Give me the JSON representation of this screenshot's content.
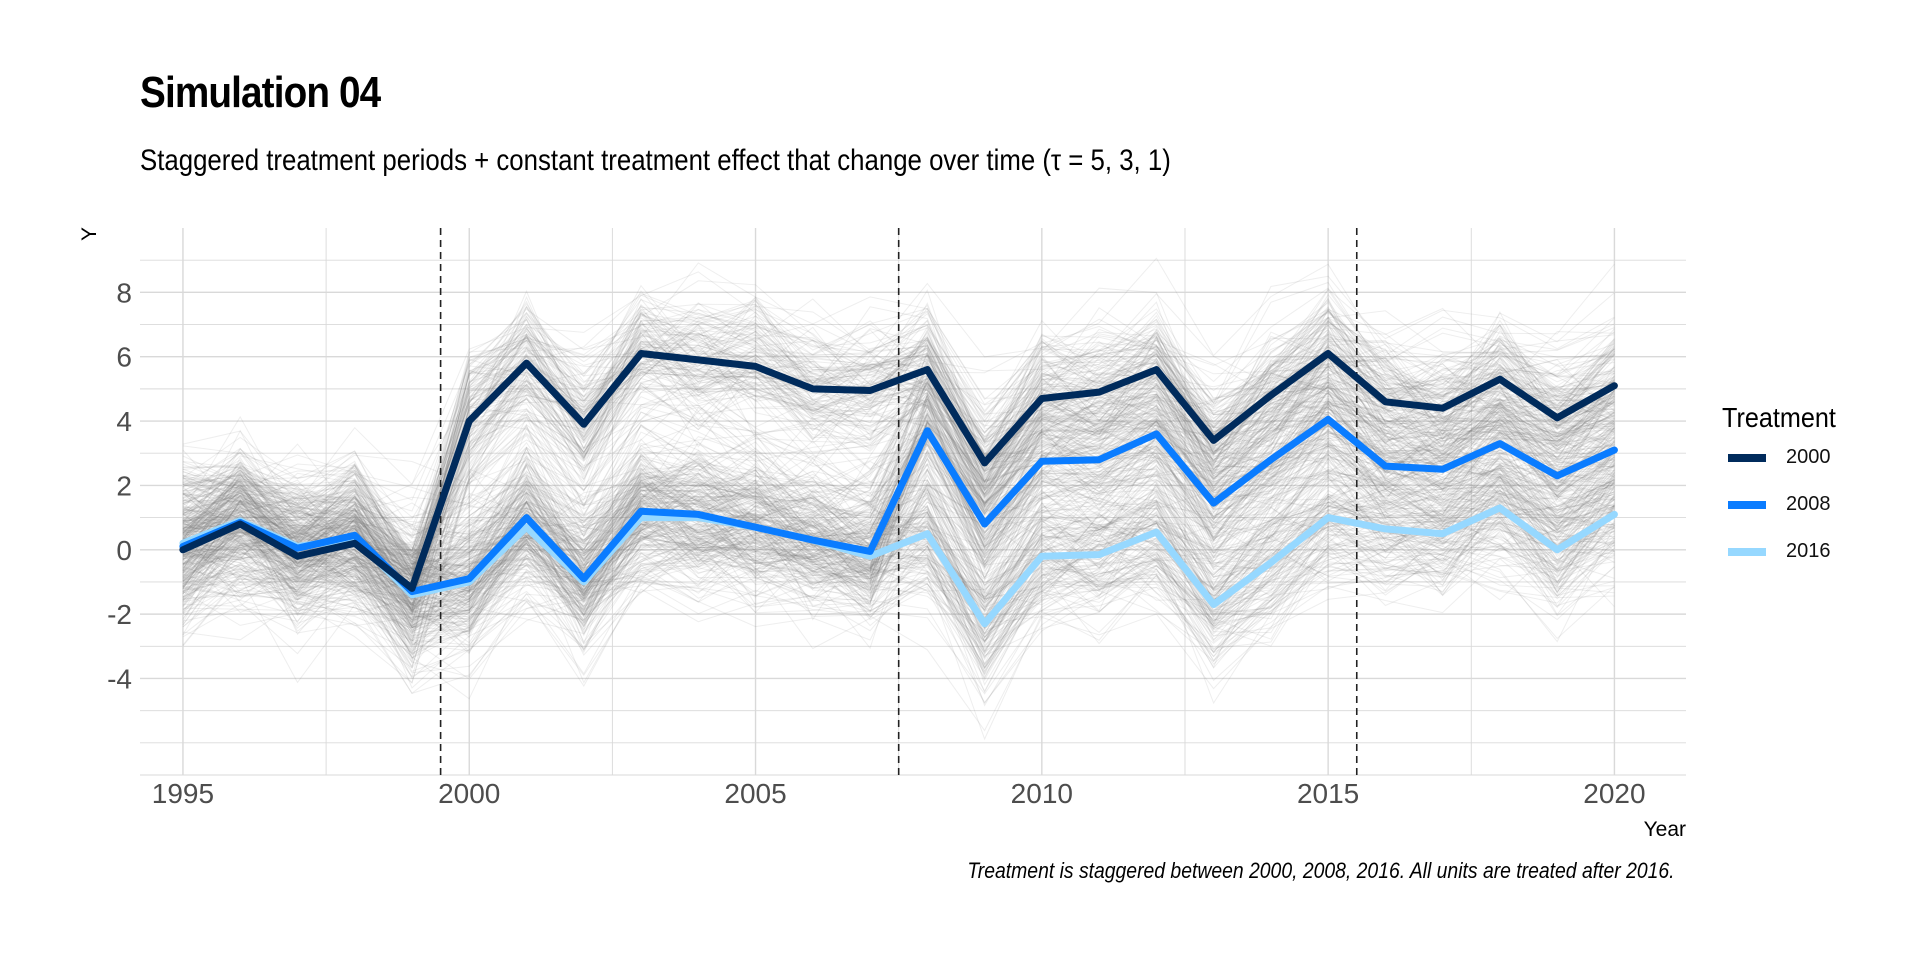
{
  "title": "Simulation 04",
  "subtitle": "Staggered treatment periods + constant treatment effect that change over time (τ = 5, 3, 1)",
  "caption": "Treatment is staggered between 2000, 2008, 2016. All units are treated after 2016.",
  "colors": {
    "c2000": "#002b5c",
    "c2008": "#0a7cff",
    "c2016": "#96d8ff",
    "background_lines": "#7a7a7a",
    "grid": "#d9d9d9",
    "vline": "#222222"
  },
  "chart_data": {
    "type": "line",
    "title": "Simulation 04",
    "subtitle": "Staggered treatment periods + constant treatment effect that change over time (τ = 5, 3, 1)",
    "xlabel": "Year",
    "ylabel": "Y",
    "xlim": [
      1994.25,
      2021.25
    ],
    "ylim": [
      -7,
      10
    ],
    "x_ticks": [
      1995,
      2000,
      2005,
      2010,
      2015,
      2020
    ],
    "y_ticks": [
      -4,
      -2,
      0,
      2,
      4,
      6,
      8
    ],
    "x": [
      1995,
      1996,
      1997,
      1998,
      1999,
      2000,
      2001,
      2002,
      2003,
      2004,
      2005,
      2006,
      2007,
      2008,
      2009,
      2010,
      2011,
      2012,
      2013,
      2014,
      2015,
      2016,
      2017,
      2018,
      2019,
      2020
    ],
    "treatment_lines": [
      1999.5,
      2007.5,
      2015.5
    ],
    "legend": {
      "title": "Treatment",
      "position": "right"
    },
    "grid": true,
    "background_units": "many individual unit trajectories drawn as thin translucent grey lines",
    "series": [
      {
        "name": "2000",
        "color": "#002b5c",
        "values": [
          0.0,
          0.8,
          -0.2,
          0.2,
          -1.2,
          4.0,
          5.8,
          3.9,
          6.1,
          5.9,
          5.7,
          5.0,
          4.95,
          5.6,
          2.7,
          4.7,
          4.9,
          5.6,
          3.4,
          4.8,
          6.1,
          4.6,
          4.4,
          5.3,
          4.1,
          5.1
        ]
      },
      {
        "name": "2008",
        "color": "#0a7cff",
        "values": [
          0.1,
          0.85,
          0.05,
          0.45,
          -1.3,
          -0.9,
          1.0,
          -0.9,
          1.2,
          1.1,
          0.7,
          0.3,
          -0.05,
          3.7,
          0.8,
          2.75,
          2.8,
          3.6,
          1.45,
          2.8,
          4.05,
          2.6,
          2.5,
          3.3,
          2.3,
          3.1
        ]
      },
      {
        "name": "2016",
        "color": "#96d8ff",
        "values": [
          0.2,
          0.9,
          0.1,
          0.35,
          -1.4,
          -1.0,
          0.7,
          -1.0,
          1.0,
          1.0,
          0.7,
          0.3,
          -0.2,
          0.5,
          -2.3,
          -0.2,
          -0.15,
          0.55,
          -1.7,
          -0.4,
          1.0,
          0.65,
          0.5,
          1.3,
          0.0,
          1.1
        ]
      }
    ]
  }
}
